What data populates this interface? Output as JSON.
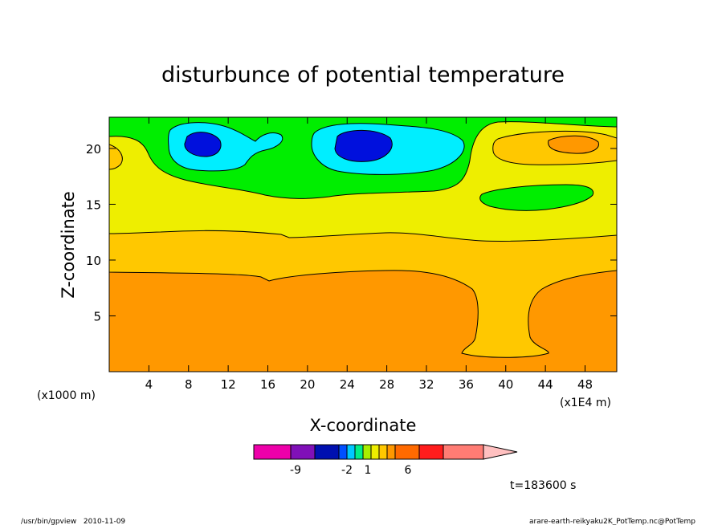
{
  "chart_data": {
    "type": "heatmap",
    "title": "disturbunce of potential temperature",
    "xlabel": "X-coordinate",
    "ylabel": "Z-coordinate",
    "xunit_left": "(x1000 m)",
    "xunit_right": "(x1E4 m)",
    "xlim": [
      0,
      51.2
    ],
    "ylim": [
      0,
      22.8
    ],
    "x_ticks": [
      4,
      8,
      12,
      16,
      20,
      24,
      28,
      32,
      36,
      40,
      44,
      48
    ],
    "y_ticks": [
      5,
      10,
      15,
      20
    ],
    "colorbar": {
      "colors": [
        "#ee00aa",
        "#8010b8",
        "#0010b0",
        "#0050ff",
        "#00c8ff",
        "#00ee88",
        "#a8ee00",
        "#eeee00",
        "#ffc800",
        "#ff9800",
        "#ff6a00",
        "#ff1c1c",
        "#ff7c74",
        "#ffc0c0"
      ],
      "tick_labels": [
        "-9",
        "-2",
        "1",
        "6"
      ]
    },
    "time_label": "t=183600 s",
    "footer_left": "/usr/bin/gpview   2010-11-09",
    "footer_right": "arare-earth-reikyaku2K_PotTemp.nc@PotTemp"
  }
}
